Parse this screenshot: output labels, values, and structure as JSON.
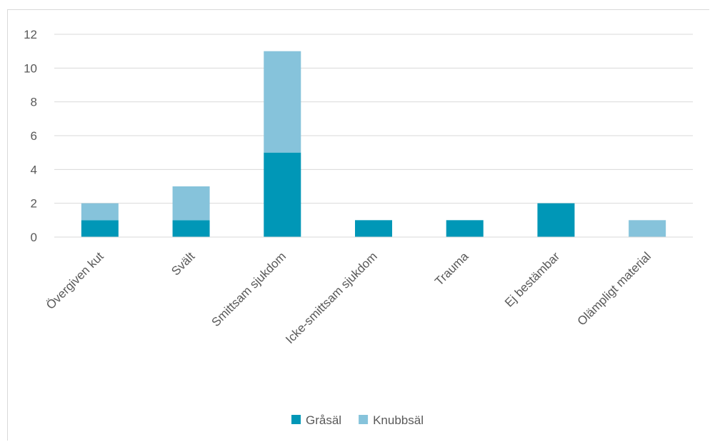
{
  "chart_data": {
    "type": "bar",
    "stacked": true,
    "categories": [
      "Övergiven kut",
      "Svält",
      "Smittsam sjukdom",
      "Icke-smittsam sjukdom",
      "Trauma",
      "Ej bestämbar",
      "Olämpligt material"
    ],
    "series": [
      {
        "name": "Gråsäl",
        "color": "#0097b7",
        "values": [
          1,
          1,
          5,
          1,
          1,
          2,
          0
        ]
      },
      {
        "name": "Knubbsäl",
        "color": "#86c3db",
        "values": [
          1,
          2,
          6,
          0,
          0,
          0,
          1
        ]
      }
    ],
    "ylim": [
      0,
      12
    ],
    "yticks": [
      0,
      2,
      4,
      6,
      8,
      10,
      12
    ],
    "grid": true,
    "legend_position": "bottom"
  }
}
